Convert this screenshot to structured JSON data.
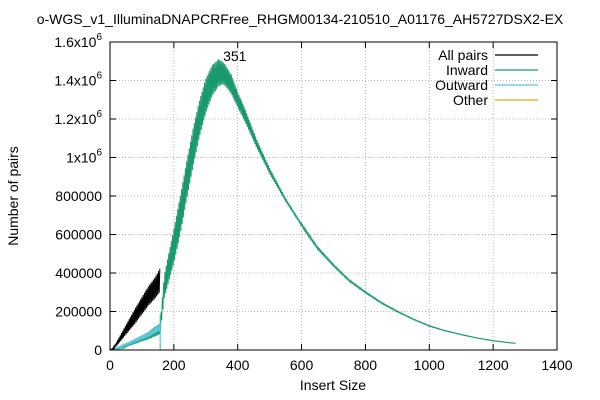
{
  "chart_data": {
    "type": "line",
    "title": "o-WGS_v1_IlluminaDNAPCRFree_RHGM00134-210510_A01176_AH5727DSX2-EX",
    "xlabel": "Insert Size",
    "ylabel": "Number of pairs",
    "xlim": [
      0,
      1400
    ],
    "ylim": [
      0,
      1600000
    ],
    "x_ticks": [
      {
        "value": 0,
        "label": "0"
      },
      {
        "value": 200,
        "label": "200"
      },
      {
        "value": 400,
        "label": "400"
      },
      {
        "value": 600,
        "label": "600"
      },
      {
        "value": 800,
        "label": "800"
      },
      {
        "value": 1000,
        "label": "1000"
      },
      {
        "value": 1200,
        "label": "1200"
      },
      {
        "value": 1400,
        "label": "1400"
      }
    ],
    "y_ticks": [
      {
        "value": 0,
        "label": "0",
        "sup": ""
      },
      {
        "value": 200000,
        "label": "200000",
        "sup": ""
      },
      {
        "value": 400000,
        "label": "400000",
        "sup": ""
      },
      {
        "value": 600000,
        "label": "600000",
        "sup": ""
      },
      {
        "value": 800000,
        "label": "800000",
        "sup": ""
      },
      {
        "value": 1000000,
        "label": "1x10",
        "sup": "6"
      },
      {
        "value": 1200000,
        "label": "1.2x10",
        "sup": "6"
      },
      {
        "value": 1400000,
        "label": "1.4x10",
        "sup": "6"
      },
      {
        "value": 1600000,
        "label": "1.6x10",
        "sup": "6"
      }
    ],
    "grid": true,
    "legend_position": "top-right",
    "annotation": {
      "label": "351",
      "x": 351,
      "y": 1460000
    },
    "series": [
      {
        "name": "All pairs",
        "color": "#000000",
        "x": [
          0,
          10,
          20,
          30,
          40,
          50,
          60,
          70,
          80,
          90,
          100,
          110,
          120,
          130,
          140,
          150,
          157
        ],
        "y": [
          0,
          8000,
          30000,
          55000,
          80000,
          105000,
          130000,
          155000,
          180000,
          205000,
          230000,
          255000,
          280000,
          300000,
          320000,
          345000,
          365000
        ],
        "amplitude": [
          0,
          4000,
          10000,
          15000,
          20000,
          25000,
          30000,
          35000,
          40000,
          42000,
          45000,
          48000,
          50000,
          52000,
          55000,
          58000,
          60000
        ]
      },
      {
        "name": "Inward",
        "color": "#1a9a6c",
        "x": [
          0,
          20,
          40,
          60,
          80,
          100,
          120,
          140,
          157,
          170,
          180,
          200,
          220,
          240,
          260,
          280,
          300,
          320,
          340,
          351,
          360,
          380,
          400,
          420,
          440,
          460,
          480,
          500,
          550,
          600,
          650,
          700,
          750,
          800,
          850,
          900,
          950,
          1000,
          1050,
          1100,
          1150,
          1200,
          1250,
          1270
        ],
        "y": [
          0,
          5000,
          15000,
          30000,
          45000,
          60000,
          75000,
          95000,
          110000,
          330000,
          400000,
          540000,
          700000,
          880000,
          1050000,
          1200000,
          1320000,
          1400000,
          1440000,
          1440000,
          1430000,
          1380000,
          1300000,
          1230000,
          1150000,
          1070000,
          1000000,
          930000,
          780000,
          650000,
          530000,
          440000,
          360000,
          300000,
          245000,
          200000,
          160000,
          125000,
          100000,
          80000,
          62000,
          48000,
          38000,
          35000
        ],
        "amplitude": [
          0,
          2000,
          5000,
          8000,
          12000,
          15000,
          20000,
          25000,
          28000,
          60000,
          70000,
          90000,
          100000,
          100000,
          100000,
          95000,
          90000,
          80000,
          70000,
          60000,
          55000,
          50000,
          40000,
          35000,
          28000,
          22000,
          18000,
          15000,
          9000,
          7000,
          5500,
          4500,
          4000,
          3500,
          3000,
          2500,
          2000,
          2000,
          1500,
          1500,
          1000,
          1000,
          1000,
          1000
        ]
      },
      {
        "name": "Outward",
        "color": "#5bc5d9",
        "x": [
          0,
          20,
          40,
          60,
          80,
          100,
          120,
          140,
          150,
          157,
          158
        ],
        "y": [
          0,
          8000,
          20000,
          35000,
          50000,
          65000,
          80000,
          100000,
          110000,
          120000,
          0
        ],
        "amplitude": [
          0,
          3000,
          6000,
          8000,
          10000,
          12000,
          14000,
          15000,
          16000,
          16000,
          0
        ],
        "spike": {
          "x": 157,
          "y": 185000
        }
      },
      {
        "name": "Other",
        "color": "#f0a020",
        "x": [
          0,
          1270
        ],
        "y": [
          0,
          0
        ],
        "amplitude": [
          0,
          0
        ]
      }
    ]
  }
}
